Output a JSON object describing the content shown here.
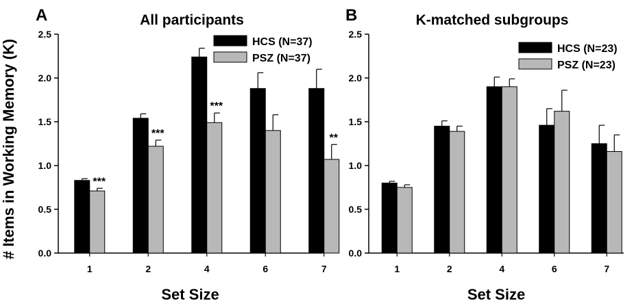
{
  "ylabel": "# Items in Working Memory (K)",
  "chart_data": [
    {
      "type": "bar",
      "panel": "A",
      "title": "All participants",
      "xlabel": "Set Size",
      "ylabel": "# Items in Working Memory (K)",
      "categories": [
        "1",
        "2",
        "4",
        "6",
        "7"
      ],
      "ylim": [
        0,
        2.5
      ],
      "yticks": [
        "0.0",
        "0.5",
        "1.0",
        "1.5",
        "2.0",
        "2.5"
      ],
      "legend_position": "top-right",
      "series": [
        {
          "name": "HCS (N=37)",
          "color": "#000000",
          "values": [
            0.83,
            1.54,
            2.24,
            1.88,
            1.88
          ],
          "errors": [
            0.02,
            0.05,
            0.1,
            0.18,
            0.22
          ]
        },
        {
          "name": "PSZ (N=37)",
          "color": "#b8b8b8",
          "values": [
            0.71,
            1.22,
            1.49,
            1.4,
            1.07
          ],
          "errors": [
            0.03,
            0.07,
            0.11,
            0.18,
            0.17
          ]
        }
      ],
      "annotations": [
        "***",
        "***",
        "***",
        "",
        "**"
      ]
    },
    {
      "type": "bar",
      "panel": "B",
      "title": "K-matched subgroups",
      "xlabel": "Set Size",
      "ylabel": "",
      "categories": [
        "1",
        "2",
        "4",
        "6",
        "7"
      ],
      "ylim": [
        0,
        2.5
      ],
      "yticks": [
        "0.0",
        "0.5",
        "1.0",
        "1.5",
        "2.0",
        "2.5"
      ],
      "legend_position": "top-right",
      "series": [
        {
          "name": "HCS (N=23)",
          "color": "#000000",
          "values": [
            0.8,
            1.45,
            1.9,
            1.46,
            1.25
          ],
          "errors": [
            0.02,
            0.06,
            0.11,
            0.19,
            0.21
          ]
        },
        {
          "name": "PSZ (N=23)",
          "color": "#b8b8b8",
          "values": [
            0.75,
            1.39,
            1.9,
            1.62,
            1.16
          ],
          "errors": [
            0.03,
            0.06,
            0.09,
            0.24,
            0.19
          ]
        }
      ],
      "annotations": [
        "",
        "",
        "",
        "",
        ""
      ]
    }
  ]
}
